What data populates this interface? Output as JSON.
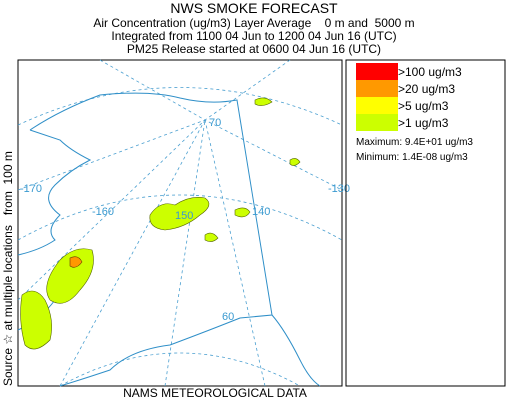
{
  "header": {
    "title": "NWS SMOKE FORECAST",
    "lines": [
      "Air Concentration (ug/m3) Layer Average    0 m and  5000 m",
      "Integrated from 1100 04 Jun to 1200 04 Jun 16 (UTC)",
      "PM25 Release started at 0600 04 Jun 16 (UTC)"
    ]
  },
  "side_label": "Source ☆ at multiple locations   from  100 m",
  "footer": "NAMS METEOROLOGICAL DATA",
  "legend": {
    "items": [
      {
        "label": ">100 ug/m3",
        "color": "#ff0000"
      },
      {
        "label": ">20 ug/m3",
        "color": "#ff9900"
      },
      {
        "label": ">5 ug/m3",
        "color": "#ffff00"
      },
      {
        "label": ">1 ug/m3",
        "color": "#ccff00"
      }
    ],
    "maximum": "Maximum: 9.4E+01 ug/m3",
    "minimum": "Minimum: 1.4E-08 ug/m3"
  },
  "map": {
    "labels": [
      "-170",
      "-160",
      "150",
      "140",
      "-130",
      "70",
      "60"
    ]
  }
}
